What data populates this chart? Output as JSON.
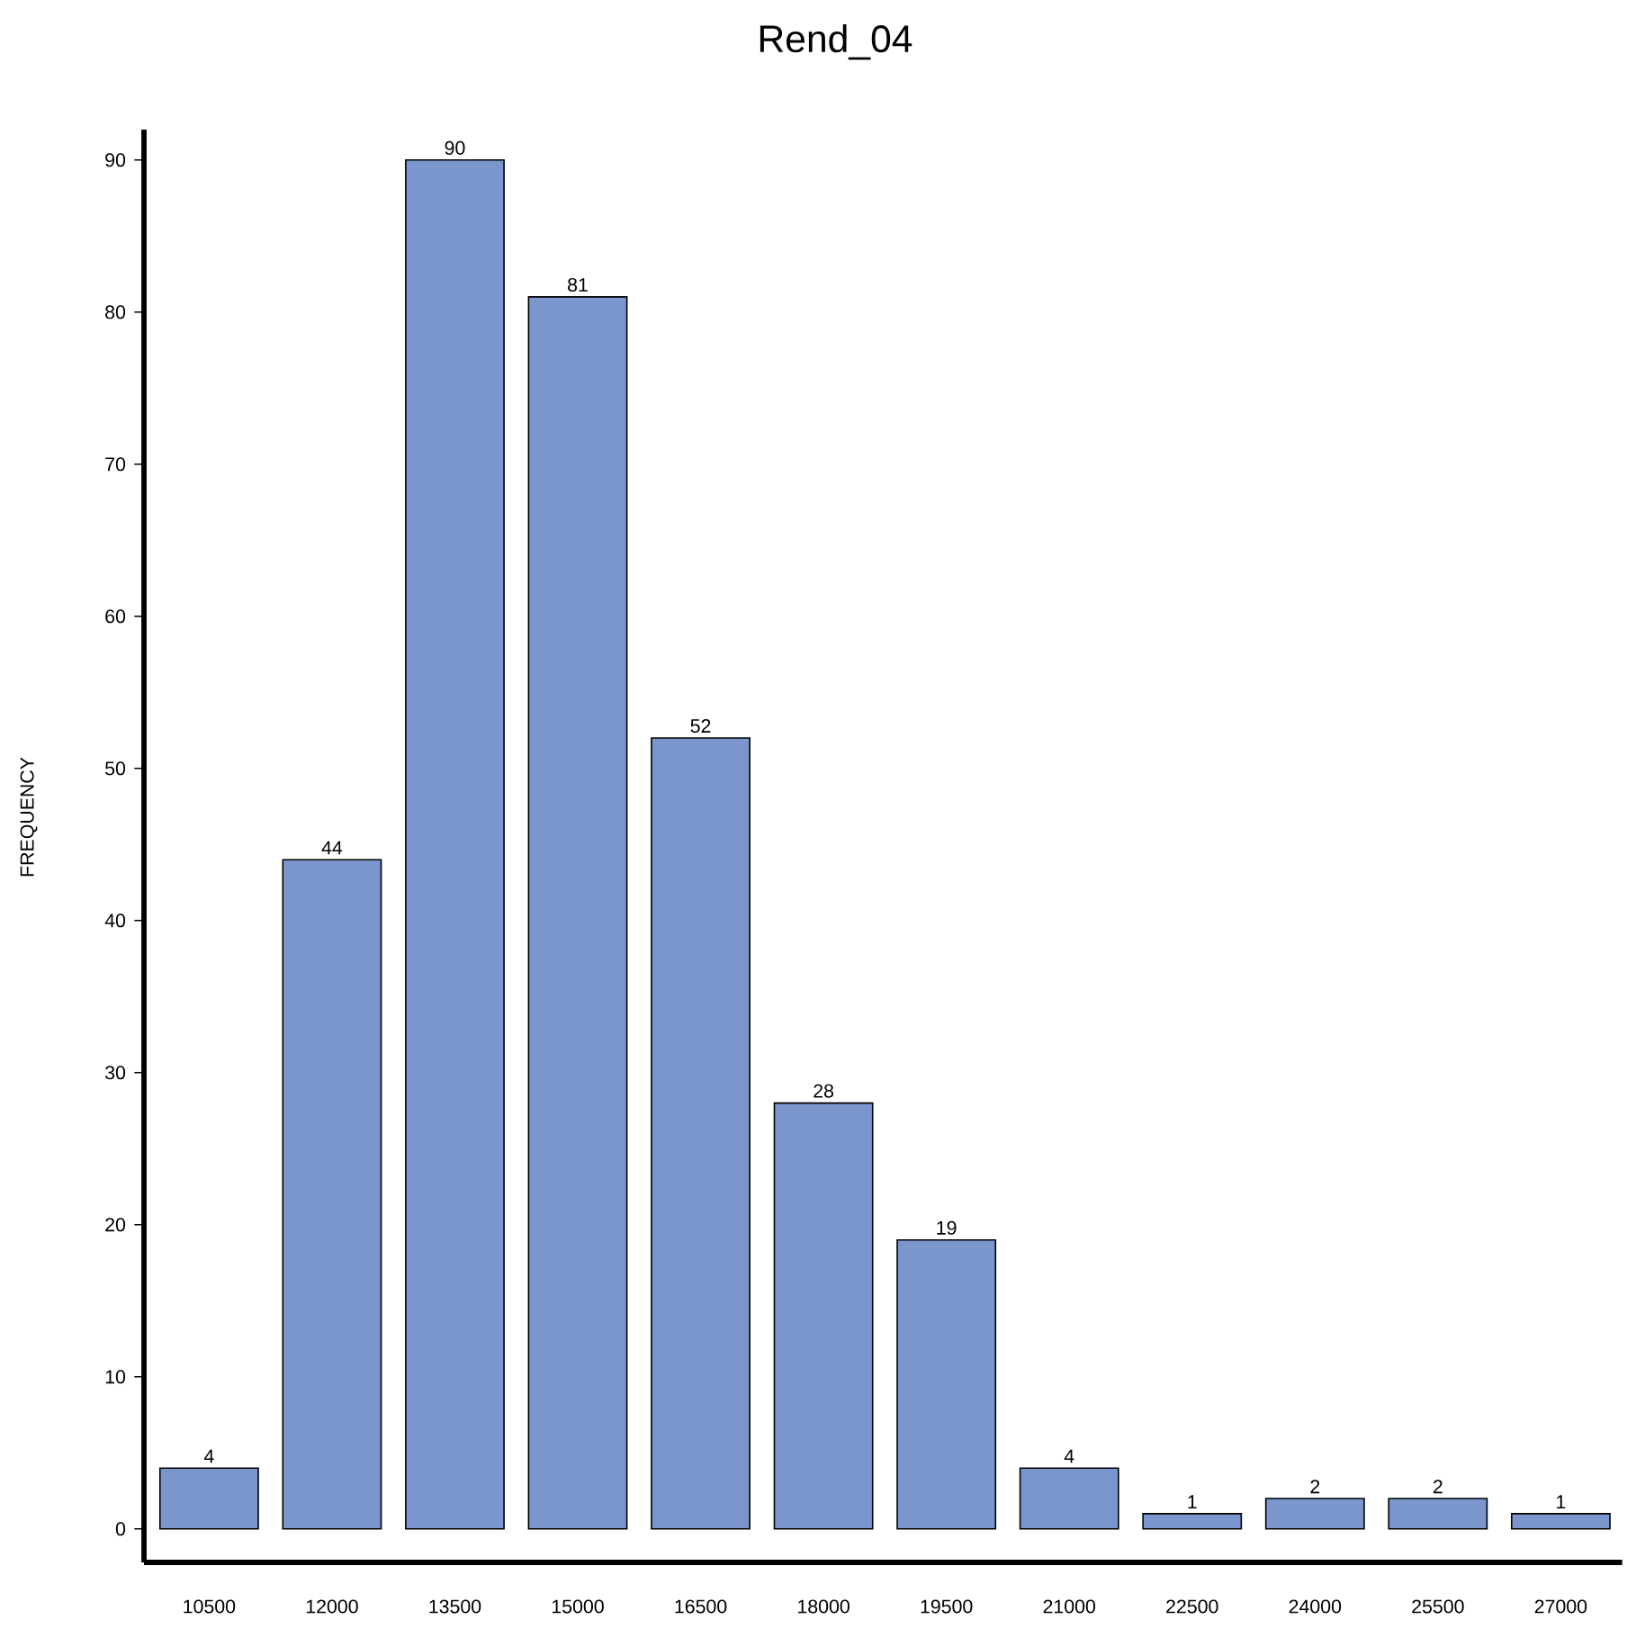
{
  "chart_data": {
    "type": "bar",
    "title": "Rend_04",
    "ylabel": "FREQUENCY",
    "categories": [
      "10500",
      "12000",
      "13500",
      "15000",
      "16500",
      "18000",
      "19500",
      "21000",
      "22500",
      "24000",
      "25500",
      "27000"
    ],
    "values": [
      4,
      44,
      90,
      81,
      52,
      28,
      19,
      4,
      1,
      2,
      2,
      1
    ],
    "color": "#7b96cc",
    "ylim": [
      -2.2,
      92
    ],
    "yticks": [
      0,
      10,
      20,
      30,
      40,
      50,
      60,
      70,
      80,
      90
    ],
    "data_labels": true
  }
}
